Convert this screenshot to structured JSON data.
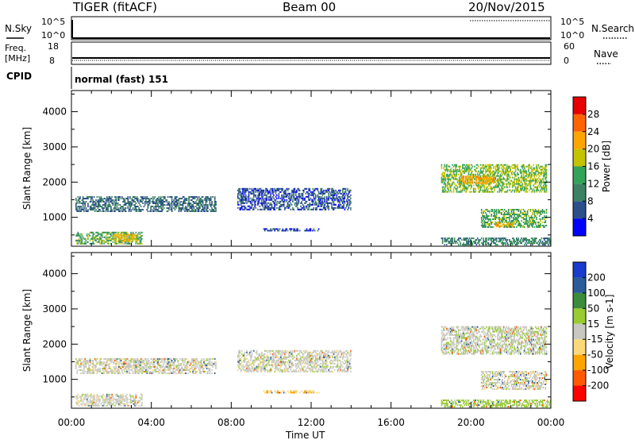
{
  "header": {
    "radar": "TIGER (fitACF)",
    "beam": "Beam 00",
    "date": "20/Nov/2015"
  },
  "status_rows": {
    "nsky_label": "N.Sky",
    "nsearch_label": "N.Search",
    "nsky_ticks": [
      "10^5",
      "10^0"
    ],
    "nsearch_ticks": [
      "10^5",
      "10^0"
    ],
    "freq_label_line1": "Freq.",
    "freq_label_line2": "[MHz]",
    "freq_ticks": [
      "18",
      "8"
    ],
    "nave_label": "Nave",
    "nave_ticks": [
      "60",
      "0"
    ],
    "cpid_label": "CPID",
    "cpid_text": "normal (fast) 151"
  },
  "colors": {
    "power": [
      "#0000ff",
      "#2c4f8c",
      "#3c8262",
      "#34a35a",
      "#c3c300",
      "#ffa500",
      "#ff6400",
      "#e60000"
    ],
    "velocity": [
      "#ff0000",
      "#ff5a00",
      "#ffa500",
      "#fbd97a",
      "#c8c8c0",
      "#99cc33",
      "#3c8c3c",
      "#2a5c9c",
      "#1a3ccc"
    ]
  },
  "chart_data": [
    {
      "type": "heatmap",
      "title": "Power",
      "ylabel": "Slant Range [km]",
      "xlabel": "",
      "x_ticks": [
        "00:00",
        "04:00",
        "08:00",
        "12:00",
        "16:00",
        "20:00",
        "00:00"
      ],
      "x_hours": [
        0,
        4,
        8,
        12,
        16,
        20,
        24
      ],
      "y_ticks": [
        1000,
        2000,
        3000,
        4000
      ],
      "ylim": [
        180,
        4600
      ],
      "xlim_hours": [
        0,
        24
      ],
      "colorbar": {
        "label": "Power [dB]",
        "ticks": [
          4,
          8,
          12,
          16,
          20,
          24,
          28
        ],
        "range": [
          0,
          32
        ]
      },
      "echo_regions": [
        {
          "t_start": 0.2,
          "t_end": 7.2,
          "r_min": 1150,
          "r_max": 1600,
          "value_dB": 8
        },
        {
          "t_start": 0.2,
          "t_end": 3.5,
          "r_min": 230,
          "r_max": 550,
          "value_dB": 14
        },
        {
          "t_start": 2.0,
          "t_end": 3.2,
          "r_min": 300,
          "r_max": 500,
          "value_dB": 20
        },
        {
          "t_start": 8.3,
          "t_end": 14.0,
          "r_min": 1200,
          "r_max": 1800,
          "value_dB": 6
        },
        {
          "t_start": 9.6,
          "t_end": 12.4,
          "r_min": 600,
          "r_max": 680,
          "value_dB": 5
        },
        {
          "t_start": 18.5,
          "t_end": 23.8,
          "r_min": 1700,
          "r_max": 2500,
          "value_dB": 16
        },
        {
          "t_start": 19.5,
          "t_end": 21.2,
          "r_min": 1950,
          "r_max": 2150,
          "value_dB": 22
        },
        {
          "t_start": 20.5,
          "t_end": 23.8,
          "r_min": 700,
          "r_max": 1200,
          "value_dB": 14
        },
        {
          "t_start": 21.2,
          "t_end": 22.2,
          "r_min": 720,
          "r_max": 840,
          "value_dB": 22
        },
        {
          "t_start": 18.5,
          "t_end": 24.0,
          "r_min": 200,
          "r_max": 400,
          "value_dB": 10
        }
      ]
    },
    {
      "type": "heatmap",
      "title": "Velocity",
      "ylabel": "Slant Range [km]",
      "xlabel": "Time UT",
      "x_ticks": [
        "00:00",
        "04:00",
        "08:00",
        "12:00",
        "16:00",
        "20:00",
        "00:00"
      ],
      "x_hours": [
        0,
        4,
        8,
        12,
        16,
        20,
        24
      ],
      "y_ticks": [
        1000,
        2000,
        3000,
        4000
      ],
      "ylim": [
        180,
        4600
      ],
      "xlim_hours": [
        0,
        24
      ],
      "colorbar": {
        "label": "Velocity [m s-1]",
        "ticks": [
          200,
          100,
          50,
          15,
          -15,
          -50,
          -100,
          -200
        ]
      },
      "echo_regions": [
        {
          "t_start": 0.2,
          "t_end": 7.2,
          "r_min": 1150,
          "r_max": 1600,
          "value_ms": 0
        },
        {
          "t_start": 0.2,
          "t_end": 3.5,
          "r_min": 230,
          "r_max": 550,
          "value_ms": 0
        },
        {
          "t_start": 8.3,
          "t_end": 14.0,
          "r_min": 1200,
          "r_max": 1800,
          "value_ms": 0
        },
        {
          "t_start": 9.6,
          "t_end": 12.4,
          "r_min": 600,
          "r_max": 680,
          "value_ms": -40
        },
        {
          "t_start": 18.5,
          "t_end": 23.8,
          "r_min": 1700,
          "r_max": 2500,
          "value_ms": 5
        },
        {
          "t_start": 20.5,
          "t_end": 23.8,
          "r_min": 700,
          "r_max": 1200,
          "value_ms": 0
        },
        {
          "t_start": 18.5,
          "t_end": 24.0,
          "r_min": 200,
          "r_max": 400,
          "value_ms": 30
        }
      ]
    }
  ],
  "footer": {
    "xlabel": "Time UT"
  }
}
